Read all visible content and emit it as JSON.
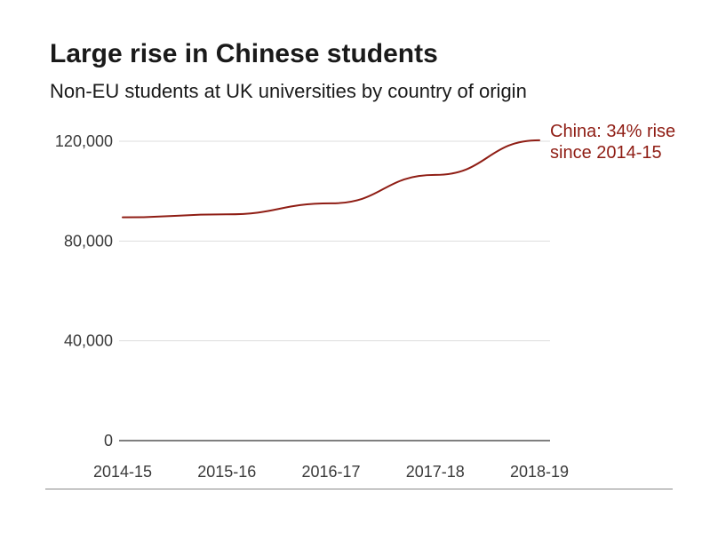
{
  "chart_data": {
    "type": "line",
    "title": "Large rise in Chinese students",
    "subtitle": "Non-EU students at UK universities by country of origin",
    "xlabel": "",
    "ylabel": "",
    "categories": [
      "2014-15",
      "2015-16",
      "2016-17",
      "2017-18",
      "2018-19"
    ],
    "series": [
      {
        "name": "China",
        "color": "#8f1d14",
        "values": [
          89500,
          90700,
          95100,
          106500,
          120400
        ]
      }
    ],
    "ylim": [
      0,
      120000
    ],
    "yticks": [
      0,
      40000,
      80000,
      120000
    ],
    "ytick_labels": [
      "0",
      "40,000",
      "80,000",
      "120,000"
    ],
    "grid": true,
    "annotation": "China: 34% rise since 2014-15",
    "gridline_color": "#dddddd",
    "baseline_color": "#333333"
  }
}
